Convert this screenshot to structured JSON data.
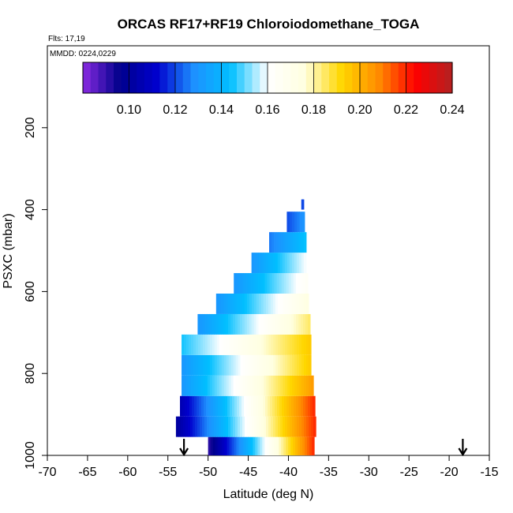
{
  "chart_data": {
    "type": "heatmap",
    "title": "ORCAS RF17+RF19 Chloroiodomethane_TOGA",
    "flights_note": "Flts: 17,19",
    "mmdd_note": "MMDD: 0224,0229",
    "xlabel": "Latitude (deg N)",
    "ylabel": "PSXC (mbar)",
    "xlim": [
      -70,
      -15
    ],
    "ylim": [
      1000,
      0
    ],
    "x_ticks": [
      -70,
      -65,
      -60,
      -55,
      -50,
      -45,
      -40,
      -35,
      -30,
      -25,
      -20,
      -15
    ],
    "x_tick_labels": [
      "-70",
      "-65",
      "-60",
      "-55",
      "-50",
      "-45",
      "-40",
      "-35",
      "-30",
      "-25",
      "-20",
      "-15"
    ],
    "y_ticks": [
      200,
      400,
      600,
      800,
      1000
    ],
    "y_tick_labels": [
      "200",
      "400",
      "600",
      "800",
      "1000"
    ],
    "colorbar": {
      "range": [
        0.08,
        0.24
      ],
      "ticks": [
        0.1,
        0.12,
        0.14,
        0.16,
        0.18,
        0.2,
        0.22,
        0.24
      ],
      "tick_labels": [
        "0.10",
        "0.12",
        "0.14",
        "0.16",
        "0.18",
        "0.20",
        "0.22",
        "0.24"
      ],
      "colors": [
        "#8a2be2",
        "#00008b",
        "#0000cd",
        "#1e90ff",
        "#00bfff",
        "#ffffff",
        "#ffffe0",
        "#ffd700",
        "#ff8c00",
        "#ff0000",
        "#b22222"
      ]
    },
    "bands": [
      {
        "p_top": 1000,
        "p_bot": 955,
        "lat_start": -50.0,
        "lat_end": -36.8,
        "v_start": 0.09,
        "v_end": 0.22
      },
      {
        "p_top": 955,
        "p_bot": 905,
        "lat_start": -54.0,
        "lat_end": -36.6,
        "v_start": 0.1,
        "v_end": 0.22
      },
      {
        "p_top": 905,
        "p_bot": 855,
        "lat_start": -53.5,
        "lat_end": -36.7,
        "v_start": 0.105,
        "v_end": 0.22
      },
      {
        "p_top": 855,
        "p_bot": 805,
        "lat_start": -53.3,
        "lat_end": -36.9,
        "v_start": 0.13,
        "v_end": 0.205
      },
      {
        "p_top": 805,
        "p_bot": 755,
        "lat_start": -53.3,
        "lat_end": -37.2,
        "v_start": 0.13,
        "v_end": 0.195
      },
      {
        "p_top": 755,
        "p_bot": 705,
        "lat_start": -53.3,
        "lat_end": -37.2,
        "v_start": 0.145,
        "v_end": 0.195
      },
      {
        "p_top": 705,
        "p_bot": 655,
        "lat_start": -51.3,
        "lat_end": -37.3,
        "v_start": 0.13,
        "v_end": 0.185
      },
      {
        "p_top": 655,
        "p_bot": 605,
        "lat_start": -49.0,
        "lat_end": -37.5,
        "v_start": 0.13,
        "v_end": 0.175
      },
      {
        "p_top": 605,
        "p_bot": 555,
        "lat_start": -46.8,
        "lat_end": -37.6,
        "v_start": 0.13,
        "v_end": 0.165
      },
      {
        "p_top": 555,
        "p_bot": 505,
        "lat_start": -44.6,
        "lat_end": -37.8,
        "v_start": 0.13,
        "v_end": 0.16
      },
      {
        "p_top": 505,
        "p_bot": 455,
        "lat_start": -42.4,
        "lat_end": -37.8,
        "v_start": 0.125,
        "v_end": 0.145
      },
      {
        "p_top": 455,
        "p_bot": 405,
        "lat_start": -40.2,
        "lat_end": -38.0,
        "v_start": 0.12,
        "v_end": 0.13
      },
      {
        "p_top": 400,
        "p_bot": 375,
        "lat_start": -38.4,
        "lat_end": -38.1,
        "v_start": 0.12,
        "v_end": 0.12
      }
    ],
    "arrows_lat": [
      -53.0,
      -18.3
    ]
  }
}
